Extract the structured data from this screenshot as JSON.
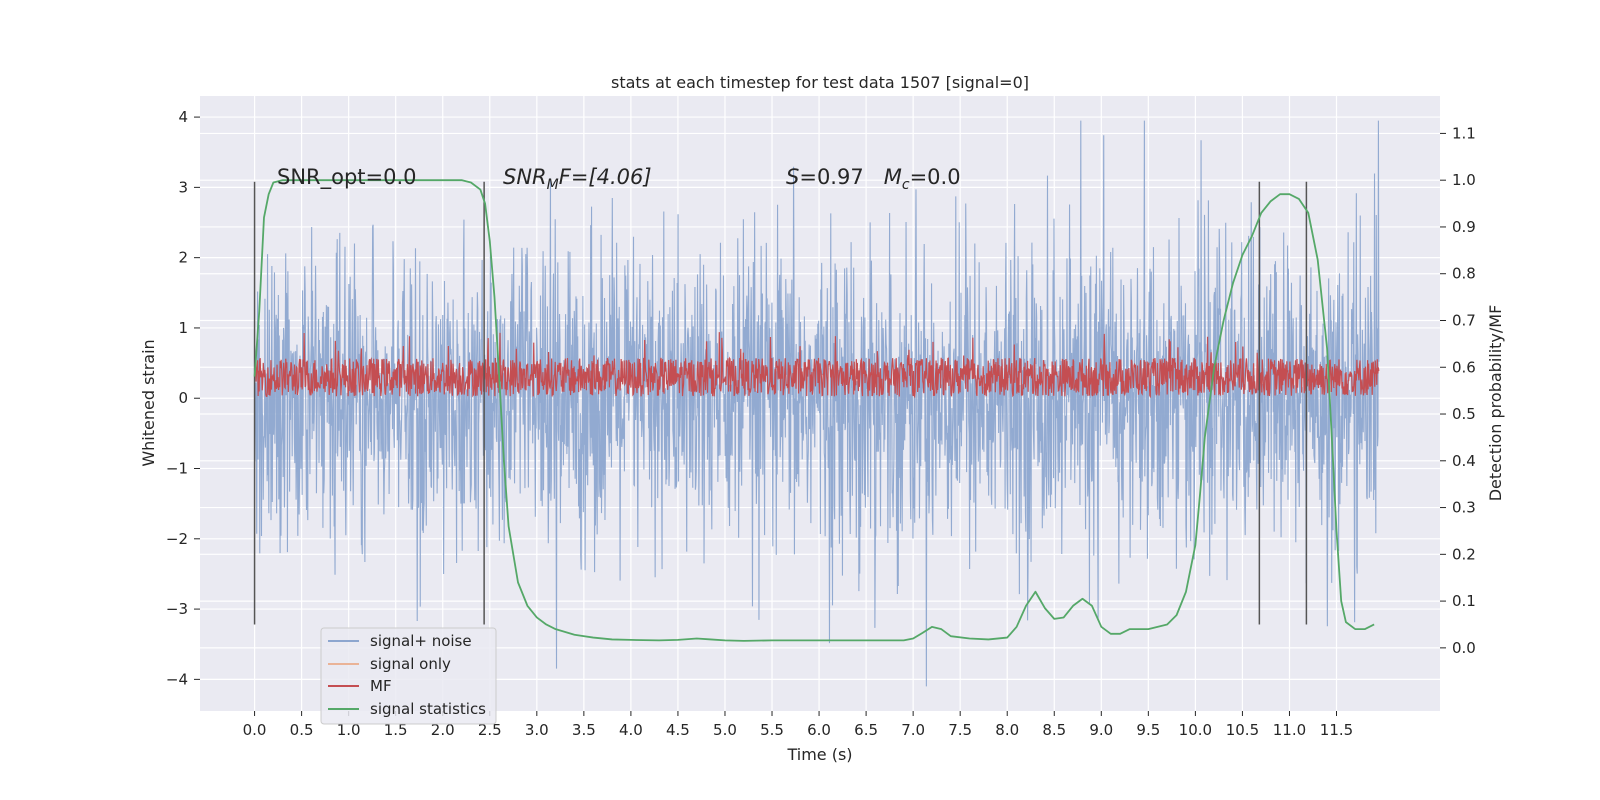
{
  "chart_data": {
    "type": "line",
    "title": "stats at each timestep for test data 1507 [signal=0]",
    "xlabel": "Time (s)",
    "ylabel": "Whitened strain",
    "y2label": "Detection probability/MF",
    "xlim": [
      -0.58,
      12.6
    ],
    "ylim": [
      -4.45,
      4.3
    ],
    "y2lim": [
      -0.135,
      1.18
    ],
    "x_ticks": [
      "0.0",
      "0.5",
      "1.0",
      "1.5",
      "2.0",
      "2.5",
      "3.0",
      "3.5",
      "4.0",
      "4.5",
      "5.0",
      "5.5",
      "6.0",
      "6.5",
      "7.0",
      "7.5",
      "8.0",
      "8.5",
      "9.0",
      "9.5",
      "10.0",
      "10.5",
      "11.0",
      "11.5"
    ],
    "x_tick_values": [
      0,
      0.5,
      1,
      1.5,
      2,
      2.5,
      3,
      3.5,
      4,
      4.5,
      5,
      5.5,
      6,
      6.5,
      7,
      7.5,
      8,
      8.5,
      9,
      9.5,
      10,
      10.5,
      11,
      11.5
    ],
    "y_ticks": [
      "4",
      "3",
      "2",
      "1",
      "0",
      "−1",
      "−2",
      "−3",
      "−4"
    ],
    "y_tick_values": [
      4,
      3,
      2,
      1,
      0,
      -1,
      -2,
      -3,
      -4
    ],
    "y2_ticks": [
      "1.1",
      "1.0",
      "0.9",
      "0.8",
      "0.7",
      "0.6",
      "0.5",
      "0.4",
      "0.3",
      "0.2",
      "0.1",
      "0.0"
    ],
    "y2_tick_values": [
      1.1,
      1.0,
      0.9,
      0.8,
      0.7,
      0.6,
      0.5,
      0.4,
      0.3,
      0.2,
      0.1,
      0.0
    ],
    "grid": true,
    "legend_position": "lower-left",
    "series": [
      {
        "name": "signal+ noise",
        "color": "#4c72b0",
        "axis": "left",
        "x_range": [
          0,
          11.95
        ],
        "envelope_low": [
          -3.6,
          -2.9
        ],
        "envelope_high": [
          2.6,
          3.9
        ],
        "note_values": "dense noise trace"
      },
      {
        "name": "signal only",
        "color": "#dd8452",
        "axis": "left",
        "values_flat": 0
      },
      {
        "name": "MF",
        "color": "#c44e52",
        "axis": "left",
        "x_range": [
          0,
          11.95
        ],
        "band": [
          0.05,
          0.6
        ]
      },
      {
        "name": "signal statistics",
        "color": "#55a868",
        "axis": "right",
        "x": [
          0.0,
          0.05,
          0.1,
          0.15,
          0.2,
          0.3,
          0.5,
          1.0,
          1.5,
          2.0,
          2.2,
          2.3,
          2.4,
          2.45,
          2.5,
          2.55,
          2.6,
          2.65,
          2.7,
          2.8,
          2.9,
          3.0,
          3.1,
          3.2,
          3.4,
          3.6,
          3.8,
          4.0,
          4.3,
          4.5,
          4.7,
          4.85,
          5.0,
          5.2,
          5.5,
          6.0,
          6.5,
          6.9,
          7.0,
          7.1,
          7.2,
          7.3,
          7.4,
          7.6,
          7.8,
          8.0,
          8.1,
          8.2,
          8.3,
          8.4,
          8.5,
          8.6,
          8.7,
          8.8,
          8.9,
          9.0,
          9.1,
          9.2,
          9.3,
          9.5,
          9.7,
          9.8,
          9.9,
          10.0,
          10.05,
          10.1,
          10.2,
          10.3,
          10.4,
          10.5,
          10.6,
          10.7,
          10.8,
          10.9,
          11.0,
          11.1,
          11.2,
          11.3,
          11.4,
          11.45,
          11.5,
          11.55,
          11.6,
          11.7,
          11.8,
          11.9
        ],
        "values": [
          0.58,
          0.72,
          0.92,
          0.97,
          0.995,
          1.0,
          1.0,
          1.0,
          1.0,
          1.0,
          1.0,
          0.995,
          0.98,
          0.95,
          0.87,
          0.75,
          0.58,
          0.4,
          0.26,
          0.14,
          0.09,
          0.065,
          0.05,
          0.04,
          0.028,
          0.022,
          0.018,
          0.017,
          0.016,
          0.017,
          0.02,
          0.018,
          0.016,
          0.015,
          0.016,
          0.016,
          0.016,
          0.016,
          0.02,
          0.032,
          0.045,
          0.04,
          0.025,
          0.02,
          0.018,
          0.022,
          0.045,
          0.09,
          0.12,
          0.085,
          0.062,
          0.065,
          0.09,
          0.105,
          0.09,
          0.045,
          0.03,
          0.03,
          0.04,
          0.04,
          0.05,
          0.07,
          0.12,
          0.22,
          0.33,
          0.45,
          0.6,
          0.7,
          0.78,
          0.84,
          0.88,
          0.93,
          0.955,
          0.97,
          0.97,
          0.96,
          0.93,
          0.83,
          0.64,
          0.45,
          0.25,
          0.1,
          0.055,
          0.04,
          0.04,
          0.05
        ]
      }
    ],
    "vlines_x": [
      0.0,
      2.44,
      10.68,
      11.18
    ],
    "annotations": [
      {
        "text": "SNR_opt=0.0",
        "x": 0.2
      },
      {
        "text_parts": [
          "SNR",
          "M",
          "F=[4.06]"
        ],
        "x": 2.6
      },
      {
        "text_parts": [
          "S",
          "=0.97   ",
          "M",
          "c",
          "=0.0"
        ],
        "x": 5.6
      }
    ]
  },
  "legend": {
    "items": [
      {
        "label": "signal+ noise",
        "color": "#8da6cf"
      },
      {
        "label": "signal only",
        "color": "#eab397"
      },
      {
        "label": "MF",
        "color": "#c44e52"
      },
      {
        "label": "signal statistics",
        "color": "#55a868"
      }
    ]
  }
}
